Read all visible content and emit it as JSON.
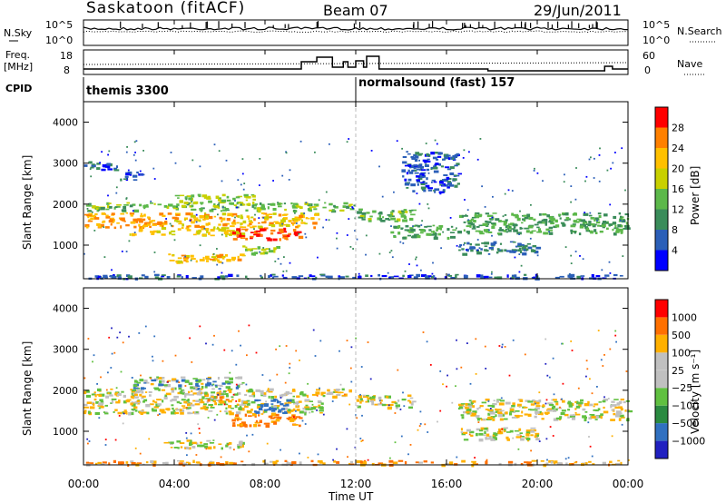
{
  "header": {
    "station": "Saskatoon (fitACF)",
    "beam": "Beam 07",
    "date": "29/Jun/2011"
  },
  "noise_panel": {
    "left_label": "N.Sky",
    "right_label": "N.Search",
    "ticks_left": [
      "10^5",
      "10^0"
    ],
    "ticks_right": [
      "10^5",
      "10^0"
    ]
  },
  "freq_panel": {
    "left_label_1": "Freq.",
    "left_label_2": "[MHz]",
    "right_label": "Nave",
    "ticks_left": [
      "18",
      "8"
    ],
    "ticks_right": [
      "60",
      "0"
    ]
  },
  "cpid": {
    "label": "CPID",
    "segments": [
      {
        "name": "themis 3300",
        "start_hour": 0
      },
      {
        "name": "normalsound (fast) 157",
        "start_hour": 12
      }
    ]
  },
  "power_panel": {
    "ylabel": "Slant Range [km]",
    "colorbar_label": "Power [dB]",
    "colorbar_ticks": [
      "28",
      "24",
      "20",
      "16",
      "12",
      "8",
      "4"
    ],
    "colors": [
      "#0000ff",
      "#2b5fb8",
      "#3a8c5a",
      "#5cb84a",
      "#c8d000",
      "#ffc000",
      "#ff8000",
      "#ff0000"
    ]
  },
  "velocity_panel": {
    "ylabel": "Slant Range [km]",
    "colorbar_label": "Velocity [m s⁻¹]",
    "colorbar_ticks": [
      "1000",
      "500",
      "100",
      "25",
      "−25",
      "−100",
      "−500",
      "−1000"
    ],
    "colors": [
      "#2020c0",
      "#3070c0",
      "#2a8a40",
      "#60c040",
      "#c0c0c0",
      "#c0c0c0",
      "#ffb000",
      "#ff7000",
      "#ff0000"
    ]
  },
  "xaxis": {
    "label": "Time UT",
    "ticks": [
      "00:00",
      "04:00",
      "08:00",
      "12:00",
      "16:00",
      "20:00",
      "00:00"
    ]
  },
  "chart_data": {
    "type": "heatmap",
    "x_range_hours": [
      0,
      24
    ],
    "y_range_km": [
      180,
      4500
    ],
    "yticks_km": [
      1000,
      2000,
      3000,
      4000
    ],
    "power_bands": [
      {
        "t0": 0.0,
        "t1": 4.0,
        "r0": 1450,
        "r1": 1800,
        "value_db": 24
      },
      {
        "t0": 4.0,
        "t1": 10.5,
        "r0": 1450,
        "r1": 1800,
        "value_db": 22
      },
      {
        "t0": 2.0,
        "t1": 7.0,
        "r0": 1250,
        "r1": 1450,
        "value_db": 20
      },
      {
        "t0": 6.5,
        "t1": 9.5,
        "r0": 1150,
        "r1": 1450,
        "value_db": 28
      },
      {
        "t0": 3.5,
        "t1": 7.0,
        "r0": 600,
        "r1": 800,
        "value_db": 22
      },
      {
        "t0": 7.0,
        "t1": 8.5,
        "r0": 800,
        "r1": 1000,
        "value_db": 16
      },
      {
        "t0": 0.0,
        "t1": 12.0,
        "r0": 1850,
        "r1": 2050,
        "value_db": 14
      },
      {
        "t0": 4.0,
        "t1": 7.5,
        "r0": 2050,
        "r1": 2250,
        "value_db": 16
      },
      {
        "t0": 0.0,
        "t1": 1.5,
        "r0": 2850,
        "r1": 3050,
        "value_db": 6
      },
      {
        "t0": 1.5,
        "t1": 2.5,
        "r0": 2600,
        "r1": 2800,
        "value_db": 6
      },
      {
        "t0": 12.0,
        "t1": 14.5,
        "r0": 1600,
        "r1": 1900,
        "value_db": 14
      },
      {
        "t0": 13.5,
        "t1": 16.5,
        "r0": 1200,
        "r1": 1500,
        "value_db": 12
      },
      {
        "t0": 16.5,
        "t1": 24.0,
        "r0": 1300,
        "r1": 1800,
        "value_db": 12
      },
      {
        "t0": 16.5,
        "t1": 20.0,
        "r0": 800,
        "r1": 1100,
        "value_db": 8
      },
      {
        "t0": 14.0,
        "t1": 16.5,
        "r0": 2300,
        "r1": 3300,
        "value_db": 6
      },
      {
        "t0": 0.0,
        "t1": 24.0,
        "r0": 200,
        "r1": 300,
        "value_db": 6
      }
    ],
    "velocity_bands": [
      {
        "t0": 0.0,
        "t1": 10.5,
        "r0": 1450,
        "r1": 1800,
        "value_ms": 0
      },
      {
        "t0": 2.0,
        "t1": 7.0,
        "r0": 2050,
        "r1": 2350,
        "value_ms": 60
      },
      {
        "t0": 5.0,
        "t1": 6.5,
        "r0": 1700,
        "r1": 2000,
        "value_ms": -60
      },
      {
        "t0": 6.5,
        "t1": 9.5,
        "r0": 1150,
        "r1": 1450,
        "value_ms": -150
      },
      {
        "t0": 7.5,
        "t1": 9.0,
        "r0": 1450,
        "r1": 1800,
        "value_ms": 300
      },
      {
        "t0": 3.5,
        "t1": 7.0,
        "r0": 600,
        "r1": 800,
        "value_ms": 0
      },
      {
        "t0": 0.0,
        "t1": 12.0,
        "r0": 1850,
        "r1": 2050,
        "value_ms": 0
      },
      {
        "t0": 12.0,
        "t1": 14.5,
        "r0": 1600,
        "r1": 1900,
        "value_ms": 0
      },
      {
        "t0": 16.5,
        "t1": 24.0,
        "r0": 1300,
        "r1": 1800,
        "value_ms": 0
      },
      {
        "t0": 16.5,
        "t1": 20.0,
        "r0": 800,
        "r1": 1100,
        "value_ms": 0
      },
      {
        "t0": 0.0,
        "t1": 24.0,
        "r0": 200,
        "r1": 300,
        "value_ms": -80
      }
    ]
  }
}
